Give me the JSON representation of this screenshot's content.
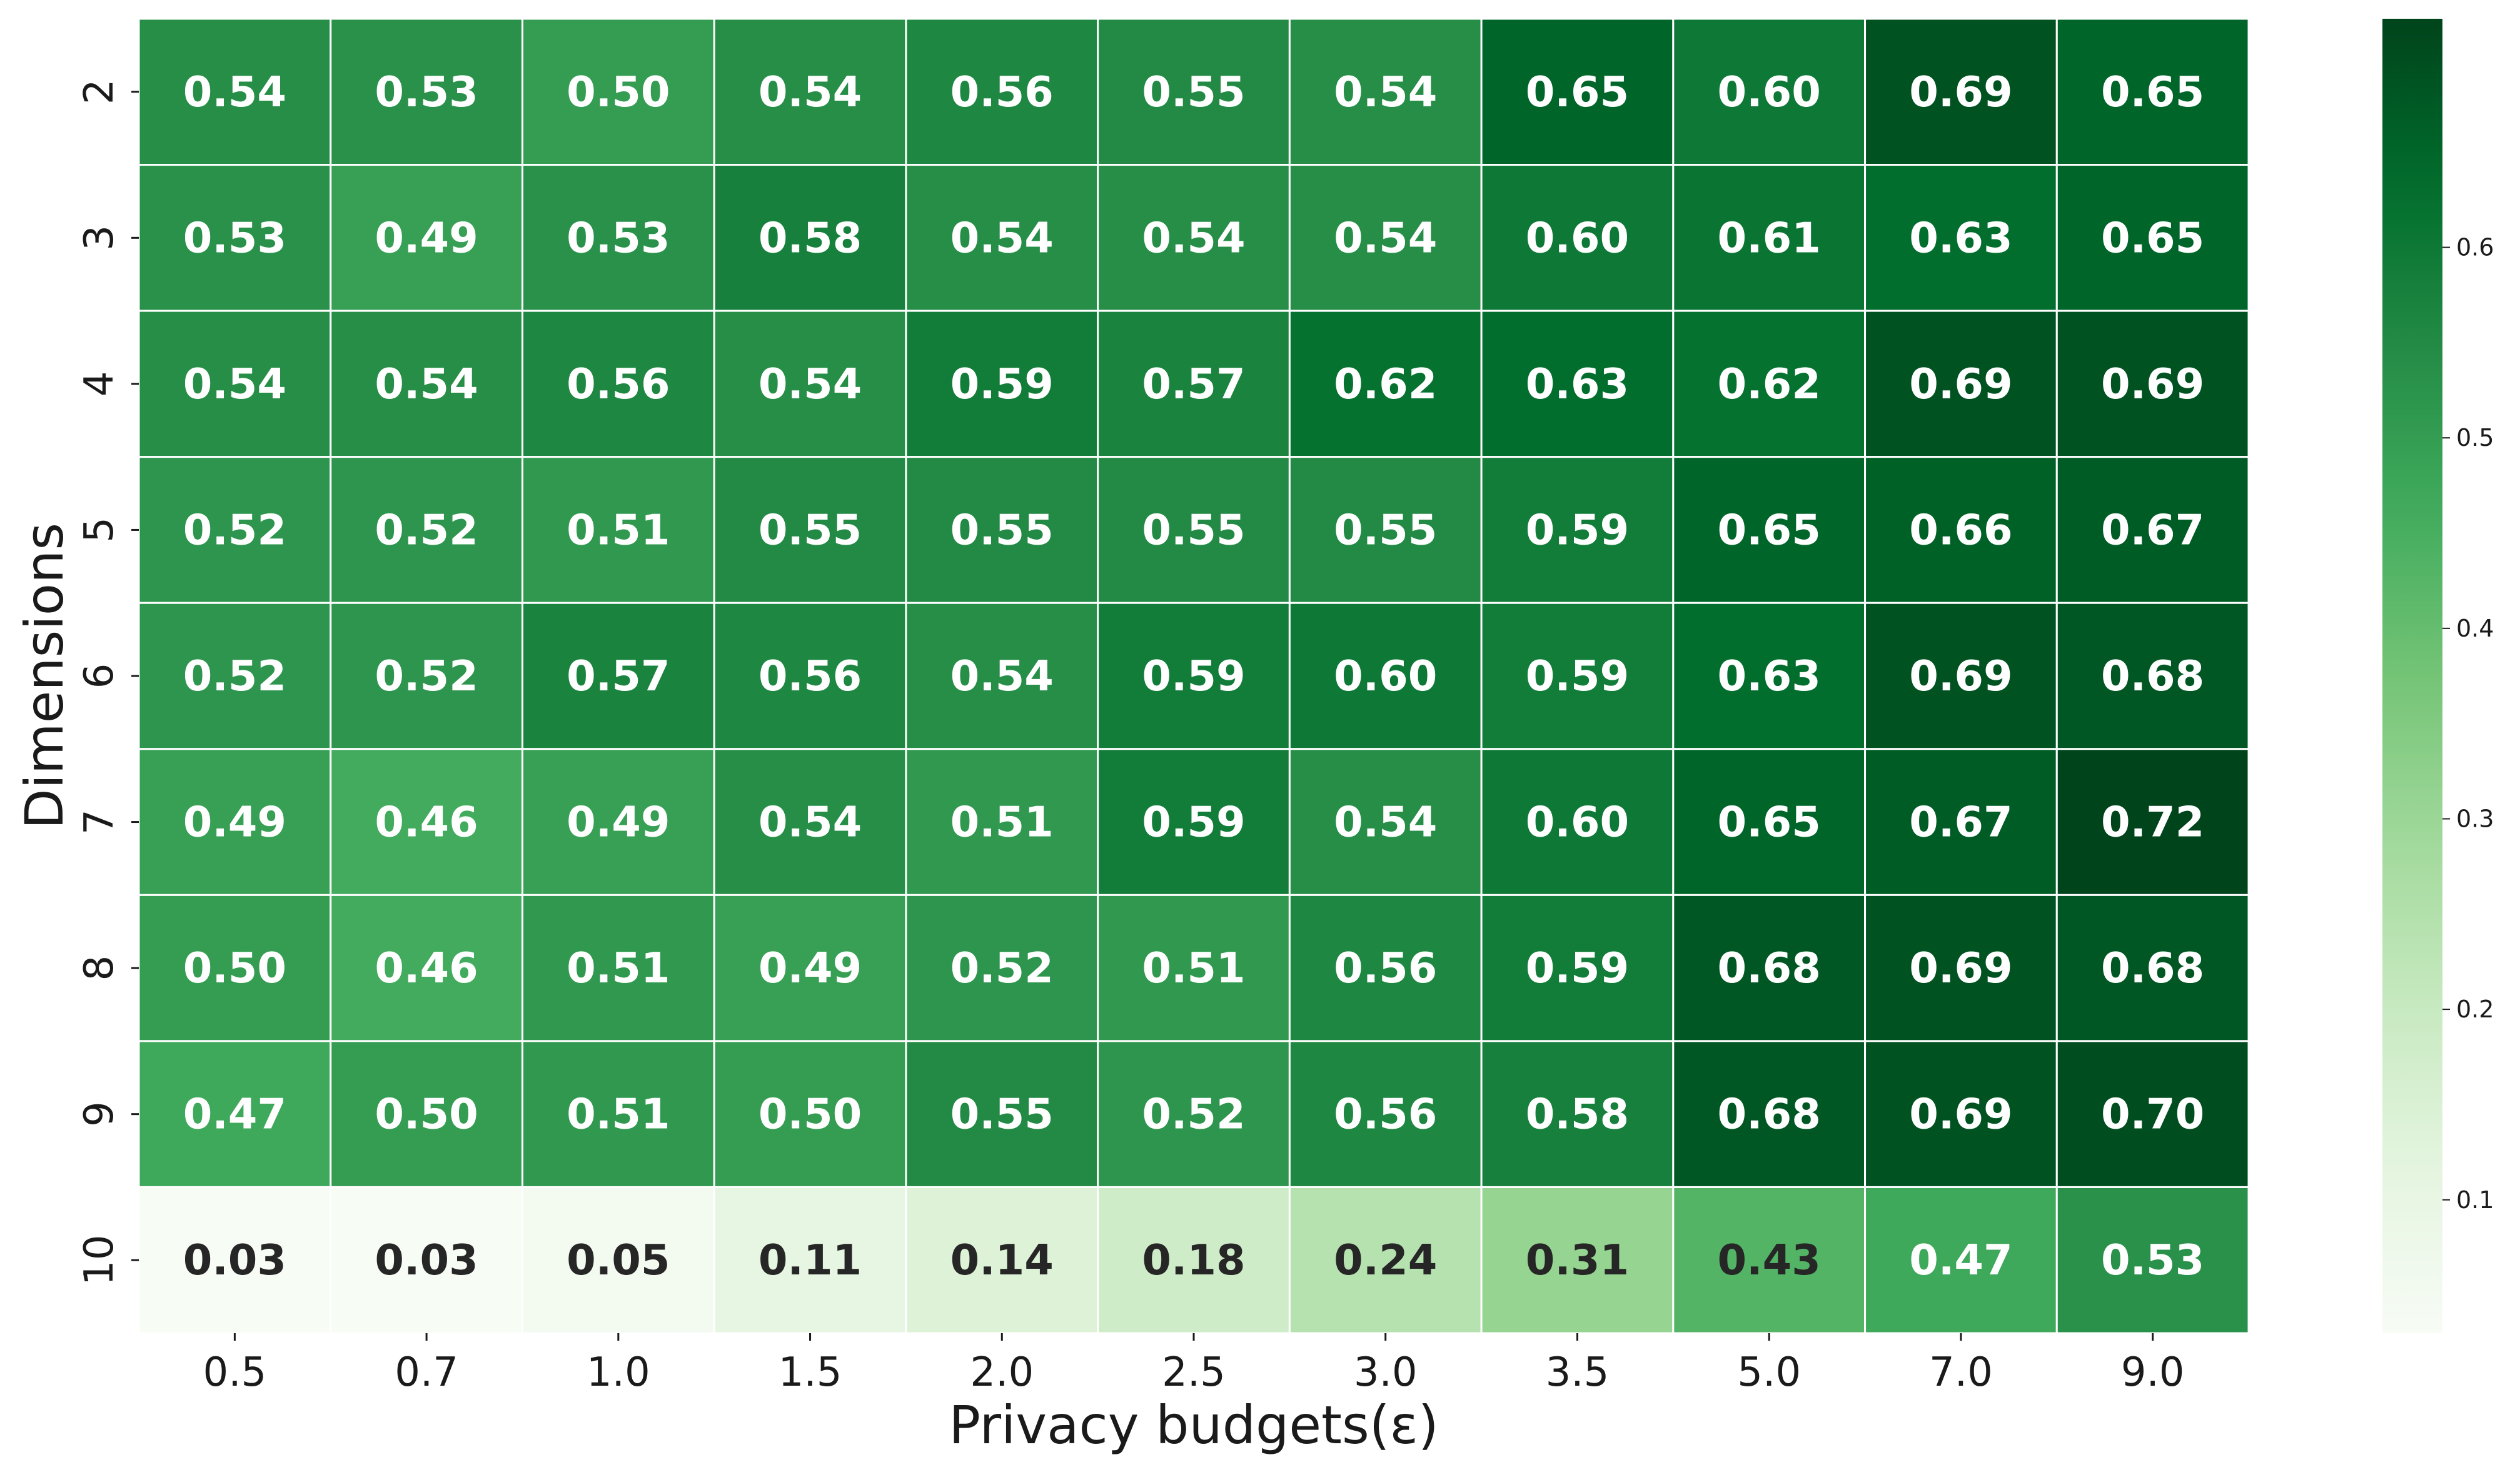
{
  "chart_data": {
    "type": "heatmap",
    "xlabel": "Privacy budgets(ε)",
    "ylabel": "Dimensions",
    "x_categories": [
      "0.5",
      "0.7",
      "1.0",
      "1.5",
      "2.0",
      "2.5",
      "3.0",
      "3.5",
      "5.0",
      "7.0",
      "9.0"
    ],
    "y_categories": [
      "2",
      "3",
      "4",
      "5",
      "6",
      "7",
      "8",
      "9",
      "10"
    ],
    "values": [
      [
        0.54,
        0.53,
        0.5,
        0.54,
        0.56,
        0.55,
        0.54,
        0.65,
        0.6,
        0.69,
        0.65
      ],
      [
        0.53,
        0.49,
        0.53,
        0.58,
        0.54,
        0.54,
        0.54,
        0.6,
        0.61,
        0.63,
        0.65
      ],
      [
        0.54,
        0.54,
        0.56,
        0.54,
        0.59,
        0.57,
        0.62,
        0.63,
        0.62,
        0.69,
        0.69
      ],
      [
        0.52,
        0.52,
        0.51,
        0.55,
        0.55,
        0.55,
        0.55,
        0.59,
        0.65,
        0.66,
        0.67
      ],
      [
        0.52,
        0.52,
        0.57,
        0.56,
        0.54,
        0.59,
        0.6,
        0.59,
        0.63,
        0.69,
        0.68
      ],
      [
        0.49,
        0.46,
        0.49,
        0.54,
        0.51,
        0.59,
        0.54,
        0.6,
        0.65,
        0.67,
        0.72
      ],
      [
        0.5,
        0.46,
        0.51,
        0.49,
        0.52,
        0.51,
        0.56,
        0.59,
        0.68,
        0.69,
        0.68
      ],
      [
        0.47,
        0.5,
        0.51,
        0.5,
        0.55,
        0.52,
        0.56,
        0.58,
        0.68,
        0.69,
        0.7
      ],
      [
        0.03,
        0.03,
        0.05,
        0.11,
        0.14,
        0.18,
        0.24,
        0.31,
        0.43,
        0.47,
        0.53
      ]
    ],
    "color_range": [
      0.03,
      0.72
    ],
    "colormap": "Greens",
    "colorbar_ticks": [
      "0.1",
      "0.2",
      "0.3",
      "0.4",
      "0.5",
      "0.6"
    ],
    "annotation_light_color": "#ffffff",
    "annotation_dark_color": "#262626",
    "grid_line_color": "#ffffff"
  }
}
